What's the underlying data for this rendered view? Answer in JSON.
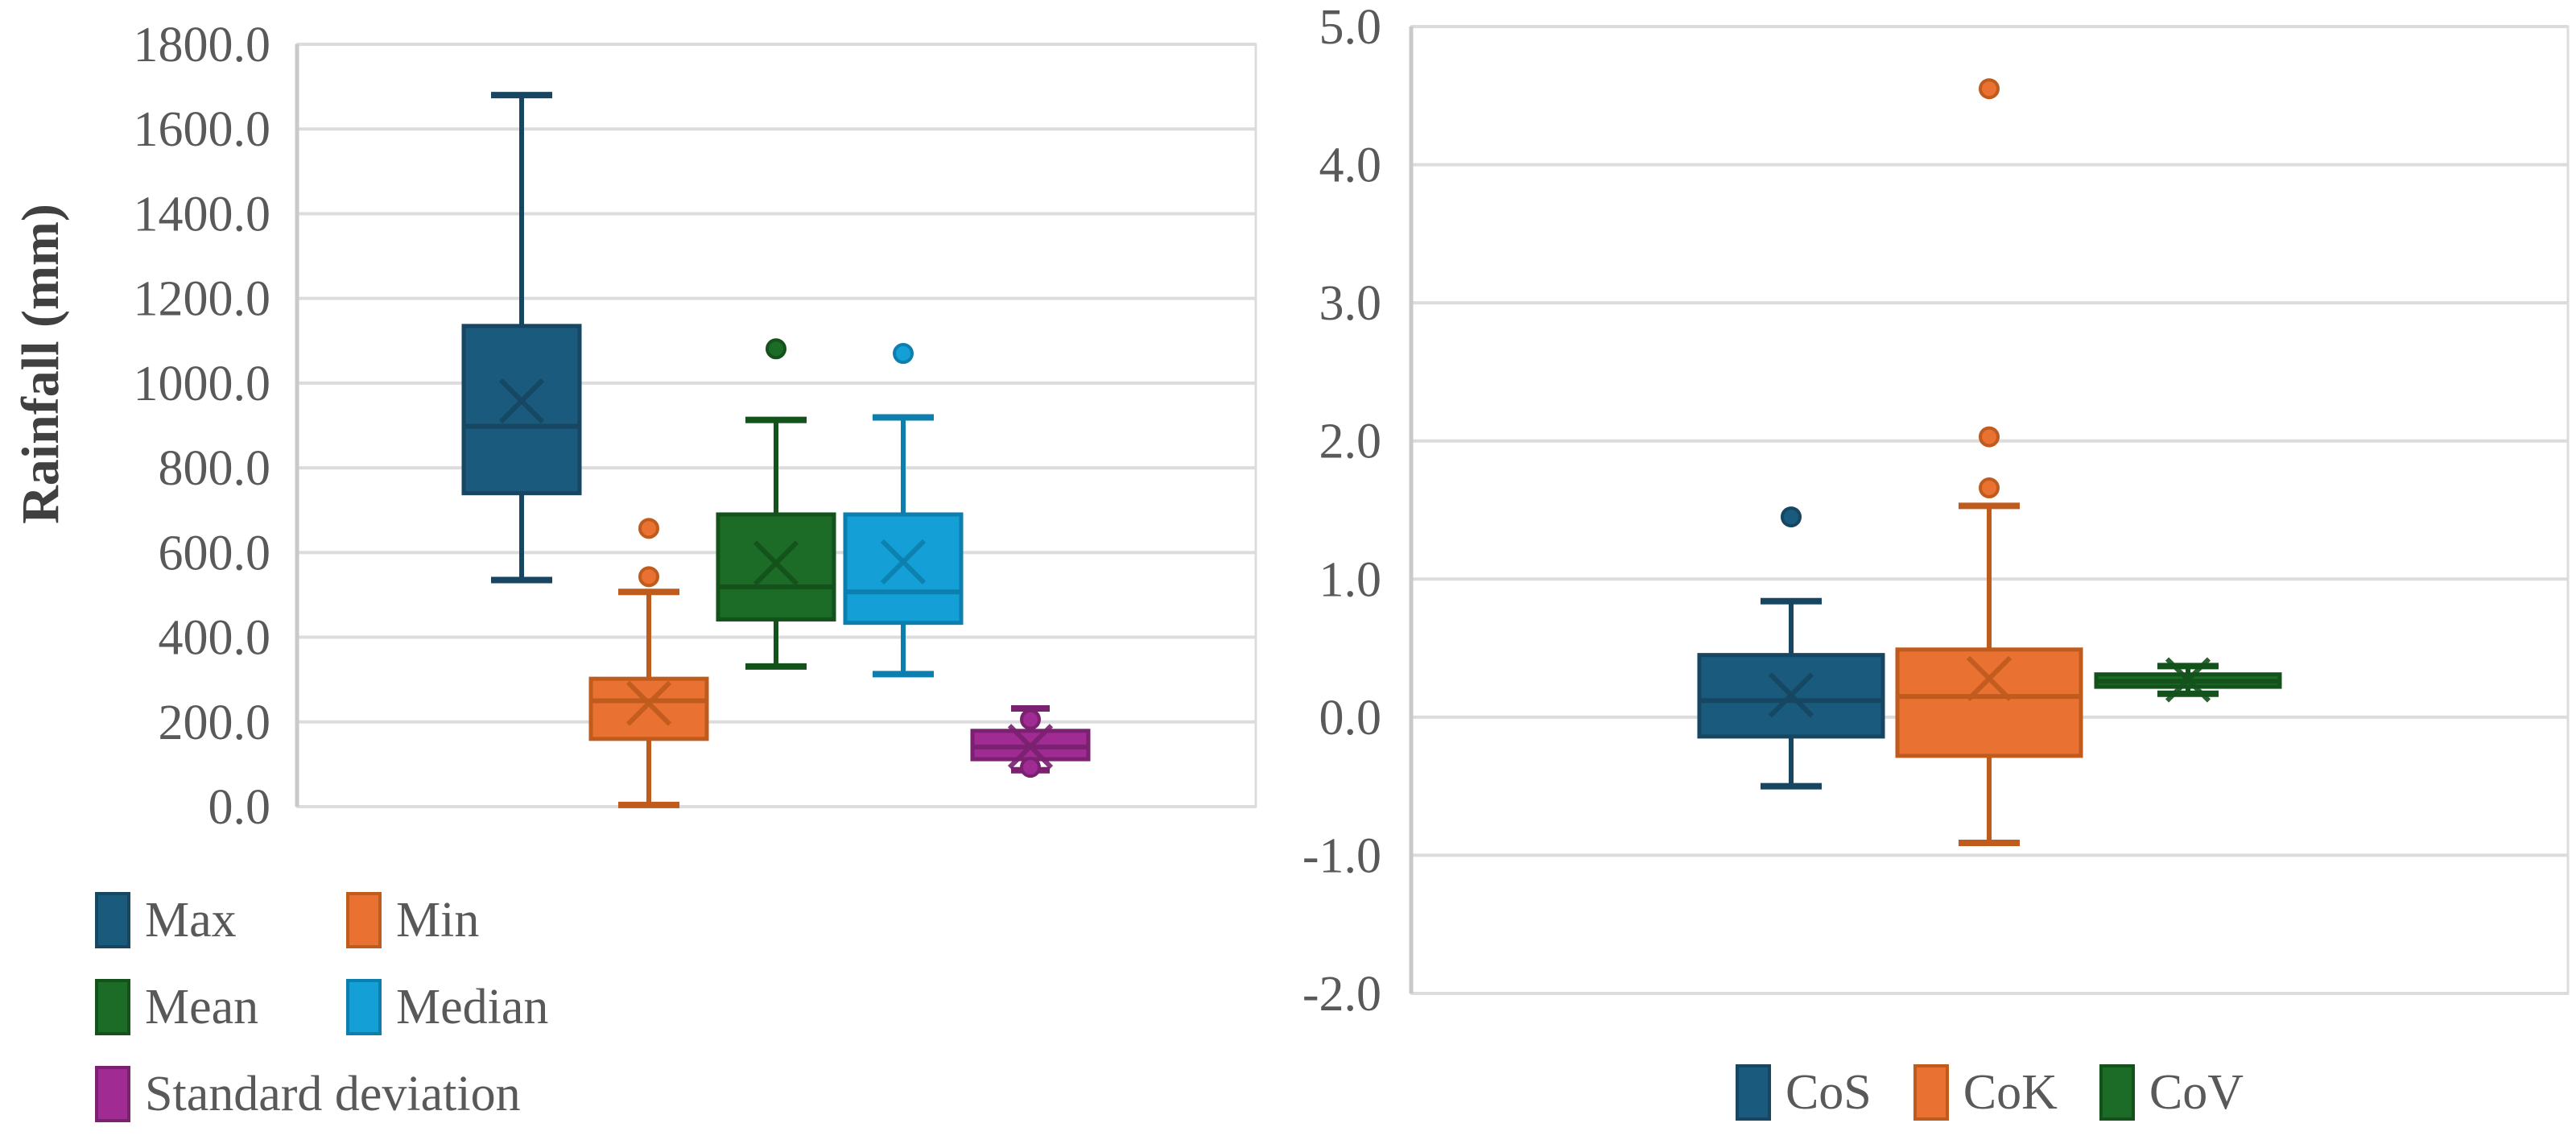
{
  "colors": {
    "background": "#ffffff",
    "grid": "#dcdcdc",
    "axis_line": "#c9c9c9",
    "text": "#595959"
  },
  "chart_data": [
    {
      "type": "boxplot",
      "title": "",
      "ylabel": "Rainfall (mm)",
      "ylim": [
        0,
        1800
      ],
      "ytick_step": 200,
      "yticks": [
        "1800.0",
        "1600.0",
        "1400.0",
        "1200.0",
        "1000.0",
        "800.0",
        "600.0",
        "400.0",
        "200.0",
        "0.0"
      ],
      "grid": true,
      "legend_position": "bottom-left-two-columns",
      "series": [
        {
          "name": "Max",
          "fill": "#1a5a7c",
          "border": "#164661",
          "whisker_low": 535,
          "q1": 740,
          "median": 898,
          "mean": 958,
          "q3": 1135,
          "whisker_high": 1680,
          "outliers": []
        },
        {
          "name": "Min",
          "fill": "#e97132",
          "border": "#bf5b1d",
          "whisker_low": 4,
          "q1": 160,
          "median": 250,
          "mean": 244,
          "q3": 302,
          "whisker_high": 507,
          "outliers": [
            657,
            543
          ]
        },
        {
          "name": "Mean",
          "fill": "#1c6b26",
          "border": "#14521c",
          "whisker_low": 331,
          "q1": 442,
          "median": 519,
          "mean": 575,
          "q3": 690,
          "whisker_high": 913,
          "outliers": [
            1081
          ]
        },
        {
          "name": "Median",
          "fill": "#14a0d6",
          "border": "#0d7fae",
          "whisker_low": 313,
          "q1": 434,
          "median": 507,
          "mean": 578,
          "q3": 690,
          "whisker_high": 919,
          "outliers": [
            1070
          ]
        },
        {
          "name": "Standard deviation",
          "fill": "#a02b93",
          "border": "#7a2170",
          "whisker_low": 86,
          "q1": 112,
          "median": 141,
          "mean": 142,
          "q3": 179,
          "whisker_high": 232,
          "outliers": [
            206,
            93
          ]
        }
      ]
    },
    {
      "type": "boxplot",
      "title": "",
      "ylabel": "",
      "ylim": [
        -2,
        5
      ],
      "ytick_step": 1,
      "yticks": [
        "5.0",
        "4.0",
        "3.0",
        "2.0",
        "1.0",
        "0.0",
        "-1.0",
        "-2.0"
      ],
      "grid": true,
      "legend_position": "bottom-center-row",
      "series": [
        {
          "name": "CoS",
          "fill": "#1a5a7c",
          "border": "#164661",
          "whisker_low": -0.5,
          "q1": -0.14,
          "median": 0.12,
          "mean": 0.16,
          "q3": 0.45,
          "whisker_high": 0.84,
          "outliers": [
            1.45
          ]
        },
        {
          "name": "CoK",
          "fill": "#e97132",
          "border": "#bf5b1d",
          "whisker_low": -0.91,
          "q1": -0.28,
          "median": 0.15,
          "mean": 0.28,
          "q3": 0.49,
          "whisker_high": 1.53,
          "outliers": [
            4.55,
            2.03,
            1.66
          ]
        },
        {
          "name": "CoV",
          "fill": "#1c6b26",
          "border": "#14521c",
          "whisker_low": 0.17,
          "q1": 0.22,
          "median": 0.26,
          "mean": 0.27,
          "q3": 0.31,
          "whisker_high": 0.37,
          "outliers": []
        }
      ]
    }
  ]
}
